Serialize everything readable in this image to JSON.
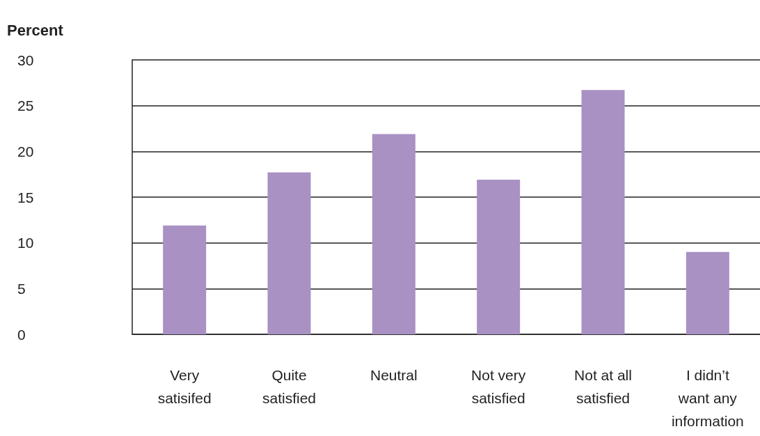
{
  "chart_data": {
    "type": "bar",
    "ylabel": "Percent",
    "categories": [
      "Very\nsatisifed",
      "Quite\nsatisfied",
      "Neutral",
      "Not very\nsatisfied",
      "Not at all\nsatisfied",
      "I didn’t\nwant any\ninformation"
    ],
    "values": [
      11.9,
      17.7,
      21.9,
      16.9,
      26.7,
      9.0
    ],
    "color": "#a991c4",
    "ylim": [
      0,
      30
    ],
    "yticks": [
      0,
      5,
      10,
      15,
      20,
      25,
      30
    ],
    "grid": "y"
  }
}
